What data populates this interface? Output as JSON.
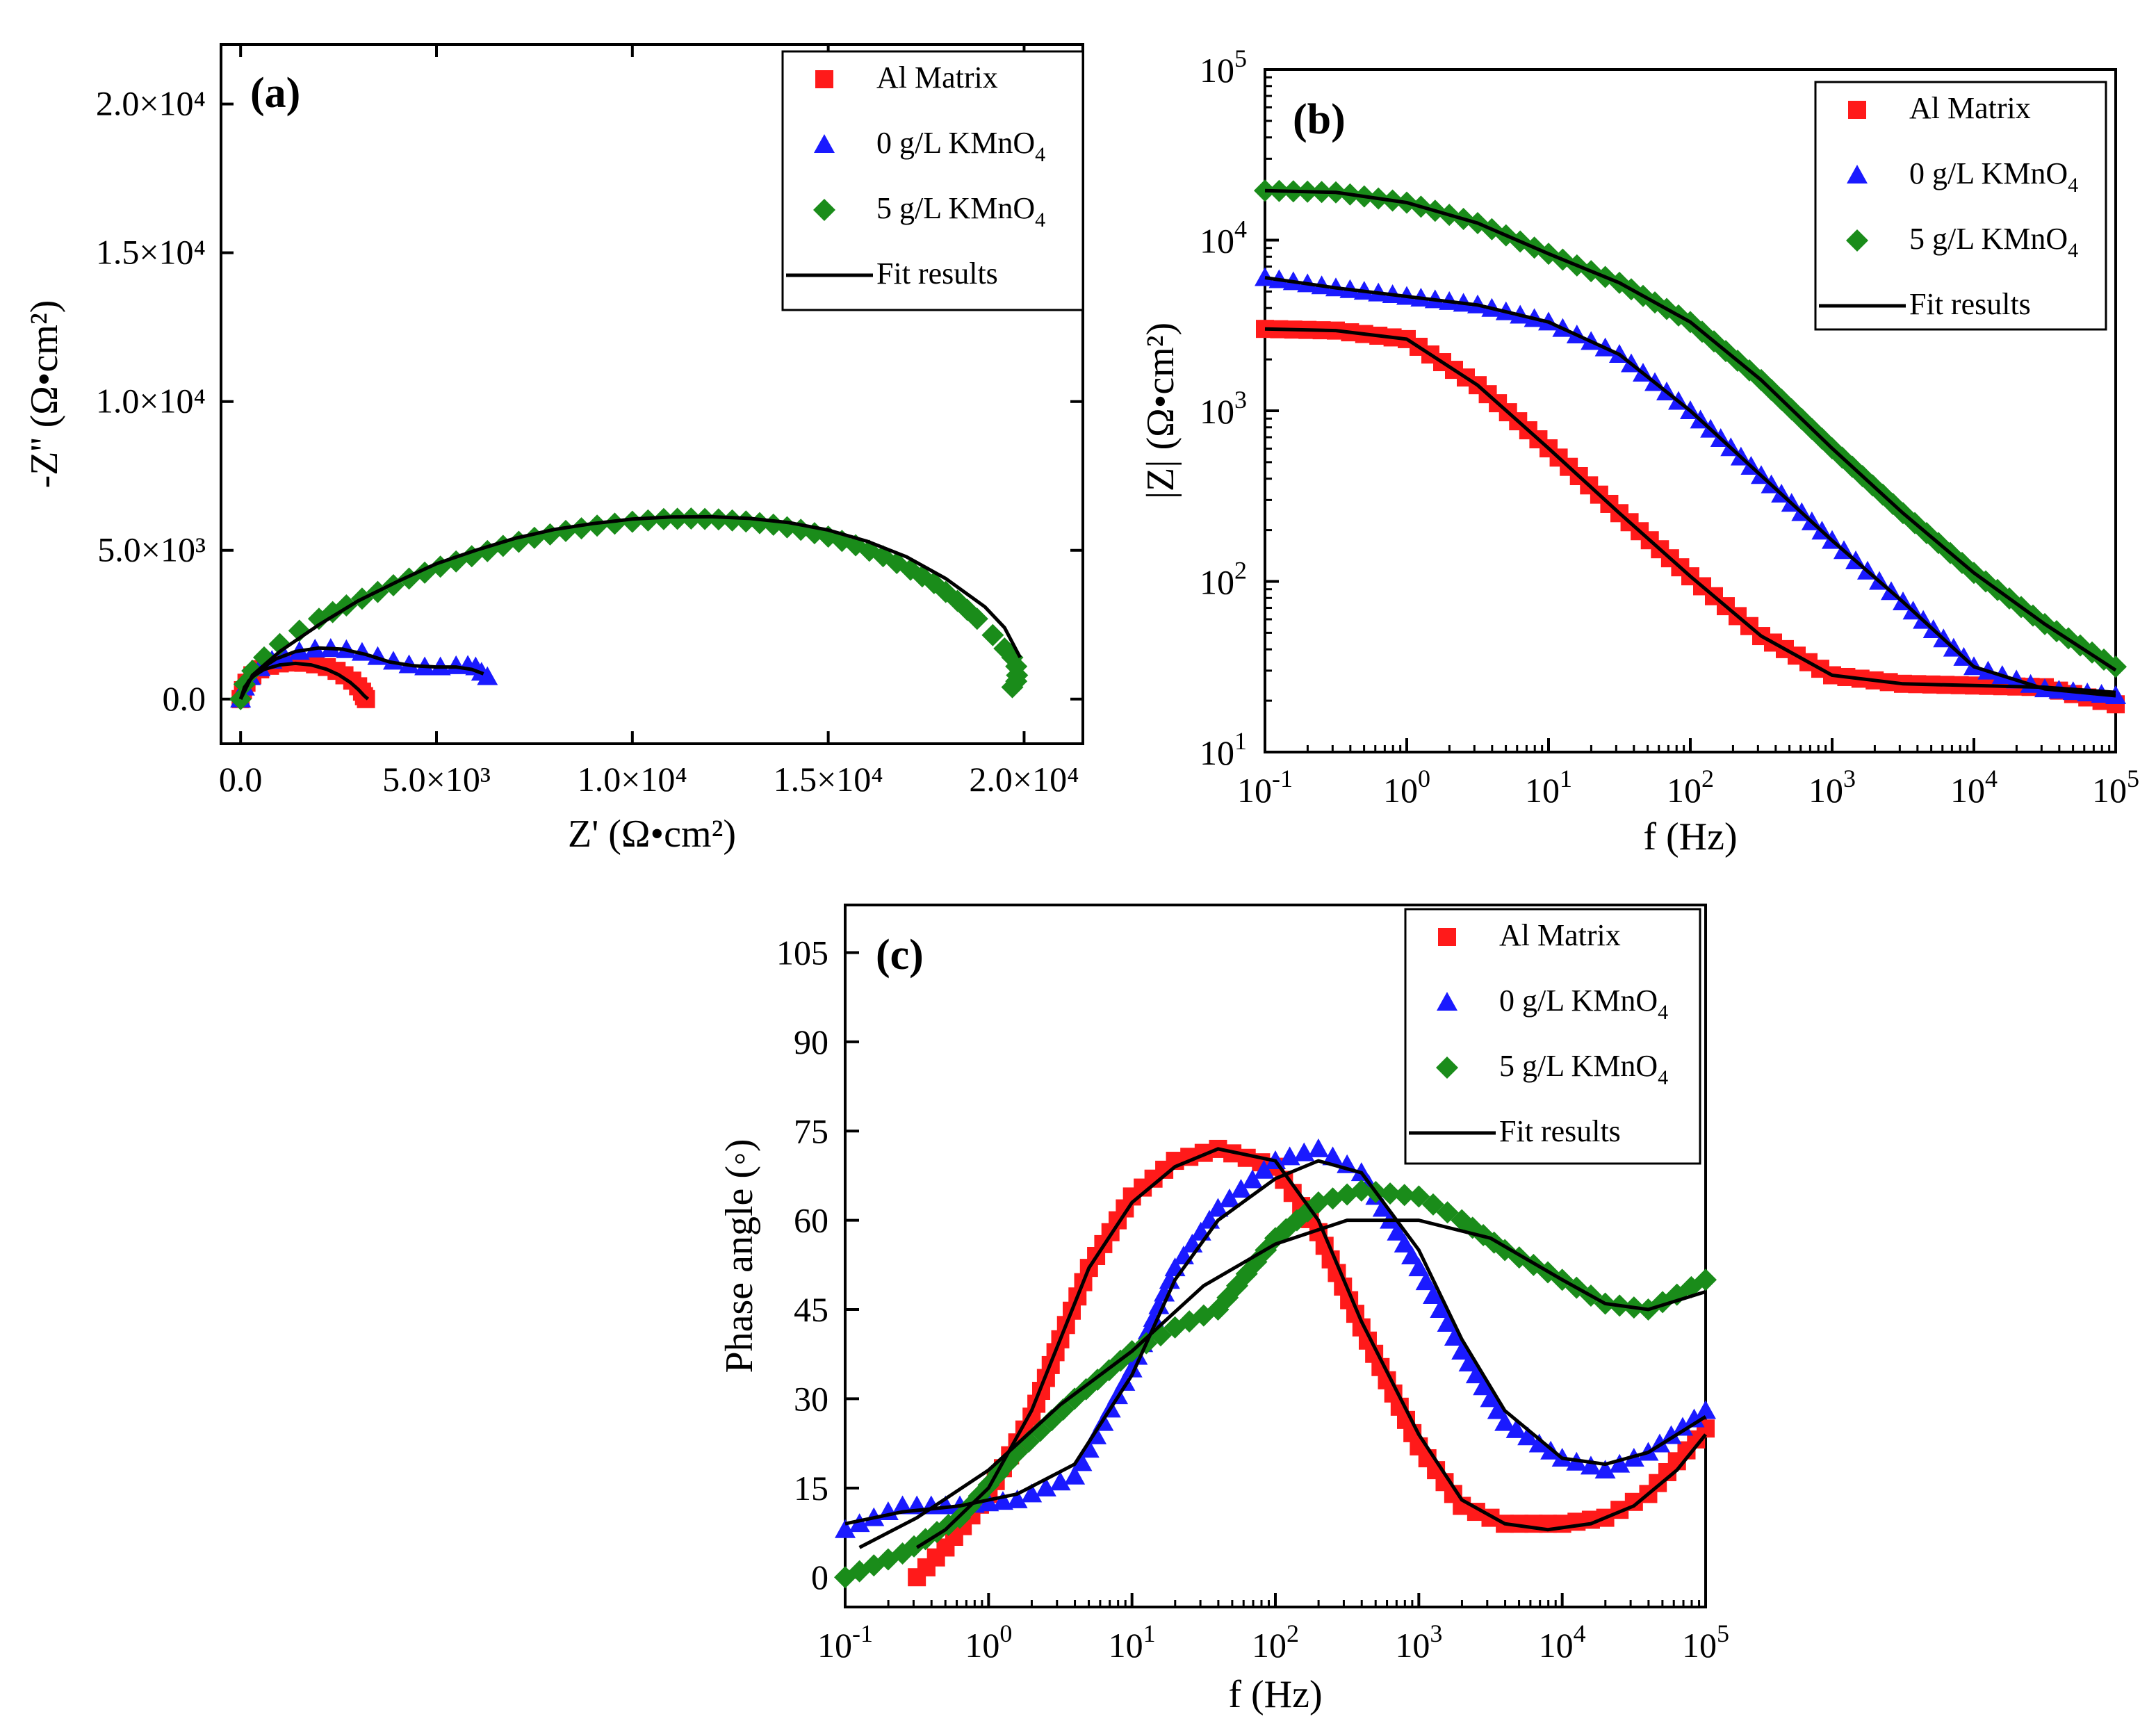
{
  "series_styles": {
    "al_matrix": {
      "color": "#ff1a1a",
      "marker": "square"
    },
    "kmno4_0": {
      "color": "#1a1aff",
      "marker": "triangle"
    },
    "kmno4_5": {
      "color": "#1a8c1a",
      "marker": "diamond"
    },
    "fit": {
      "color": "#000000"
    }
  },
  "legend": {
    "al_matrix": "Al Matrix",
    "kmno4_0": "0 g/L KMnO",
    "kmno4_5": "5 g/L KMnO",
    "subscript": "4",
    "fit": "Fit results"
  },
  "chart_data": [
    {
      "id": "a",
      "type": "scatter",
      "panel_label": "(a)",
      "xlabel": "Z' (Ω•cm²)",
      "ylabel": "-Z'' (Ω•cm²)",
      "xlim": [
        -500,
        21500
      ],
      "ylim": [
        -1500,
        22000
      ],
      "xticks": [
        {
          "v": 0,
          "label": "0.0"
        },
        {
          "v": 5000,
          "label": "5.0×10³"
        },
        {
          "v": 10000,
          "label": "1.0×10⁴"
        },
        {
          "v": 15000,
          "label": "1.5×10⁴"
        },
        {
          "v": 20000,
          "label": "2.0×10⁴"
        }
      ],
      "yticks": [
        {
          "v": 0,
          "label": "0.0"
        },
        {
          "v": 5000,
          "label": "5.0×10³"
        },
        {
          "v": 10000,
          "label": "1.0×10⁴"
        },
        {
          "v": 15000,
          "label": "1.5×10⁴"
        },
        {
          "v": 20000,
          "label": "2.0×10⁴"
        }
      ],
      "series": [
        {
          "key": "al_matrix",
          "name": "Al Matrix",
          "x": [
            0,
            60,
            150,
            300,
            500,
            750,
            1000,
            1300,
            1600,
            1900,
            2200,
            2450,
            2650,
            2850,
            3000,
            3100,
            3150,
            3200
          ],
          "y": [
            0,
            300,
            550,
            800,
            1000,
            1120,
            1200,
            1230,
            1220,
            1170,
            1080,
            950,
            800,
            620,
            430,
            250,
            100,
            0
          ]
        },
        {
          "key": "kmno4_0",
          "name": "0 g/L KMnO4",
          "x": [
            0,
            100,
            250,
            500,
            800,
            1100,
            1500,
            1900,
            2300,
            2700,
            3100,
            3500,
            3900,
            4300,
            4700,
            5100,
            5500,
            5800,
            6000,
            6150,
            6300
          ],
          "y": [
            0,
            400,
            750,
            1050,
            1300,
            1470,
            1600,
            1680,
            1700,
            1660,
            1570,
            1430,
            1270,
            1150,
            1080,
            1080,
            1120,
            1130,
            1080,
            900,
            750
          ]
        },
        {
          "key": "kmno4_5",
          "name": "5 g/L KMnO4",
          "x": [
            0,
            100,
            300,
            600,
            1000,
            1500,
            2000,
            2700,
            3500,
            4300,
            5100,
            5900,
            6700,
            7500,
            8300,
            9100,
            10000,
            10800,
            11500,
            12200,
            12900,
            13600,
            14300,
            15000,
            15700,
            16400,
            17100,
            17700,
            18300,
            18800,
            19200,
            19500,
            19700,
            19800,
            19820,
            19800,
            19700
          ],
          "y": [
            0,
            500,
            950,
            1400,
            1850,
            2300,
            2700,
            3150,
            3600,
            4050,
            4450,
            4800,
            5150,
            5420,
            5650,
            5830,
            5960,
            6050,
            6070,
            6040,
            5970,
            5860,
            5690,
            5460,
            5170,
            4800,
            4350,
            3900,
            3300,
            2700,
            2150,
            1700,
            1400,
            1100,
            800,
            600,
            400
          ]
        }
      ],
      "fits": [
        {
          "key": "al_matrix",
          "x": [
            0,
            100,
            300,
            600,
            1000,
            1400,
            1800,
            2200,
            2500,
            2800,
            3000,
            3150,
            3250
          ],
          "y": [
            0,
            400,
            750,
            1000,
            1150,
            1200,
            1150,
            1000,
            820,
            560,
            330,
            120,
            0
          ]
        },
        {
          "key": "kmno4_0",
          "x": [
            0,
            200,
            500,
            900,
            1400,
            2000,
            2600,
            3200,
            3800,
            4400,
            5000,
            5500,
            5900,
            6200
          ],
          "y": [
            0,
            600,
            1000,
            1350,
            1600,
            1720,
            1680,
            1500,
            1250,
            1120,
            1080,
            1080,
            1000,
            850
          ]
        },
        {
          "key": "kmno4_5",
          "x": [
            0,
            300,
            1000,
            2000,
            3000,
            4000,
            5000,
            6000,
            7000,
            8000,
            9000,
            10000,
            11000,
            12000,
            13000,
            14000,
            15000,
            16000,
            17000,
            18000,
            19000,
            19500,
            19900
          ],
          "y": [
            0,
            800,
            1600,
            2500,
            3300,
            3950,
            4550,
            5000,
            5400,
            5700,
            5900,
            6050,
            6120,
            6130,
            6070,
            5930,
            5680,
            5300,
            4780,
            4050,
            3100,
            2400,
            1400
          ]
        }
      ]
    },
    {
      "id": "b",
      "type": "scatter",
      "panel_label": "(b)",
      "xlabel": "f (Hz)",
      "ylabel": "|Z| (Ω•cm²)",
      "xscale": "log",
      "yscale": "log",
      "xlim_exp": [
        -1,
        5
      ],
      "ylim_exp": [
        1,
        5
      ],
      "xticks_exp": [
        -1,
        0,
        1,
        2,
        3,
        4,
        5
      ],
      "yticks_exp": [
        1,
        2,
        3,
        4,
        5
      ],
      "series": [
        {
          "key": "al_matrix",
          "name": "Al Matrix",
          "logf": [
            -1,
            -0.5,
            0,
            0.5,
            1,
            1.5,
            2,
            2.5,
            3,
            3.5,
            4,
            4.5,
            5
          ],
          "logz": [
            3.48,
            3.47,
            3.42,
            3.15,
            2.78,
            2.4,
            2.03,
            1.68,
            1.45,
            1.4,
            1.39,
            1.38,
            1.28
          ]
        },
        {
          "key": "kmno4_0",
          "name": "0 g/L KMnO4",
          "logf": [
            -1,
            -0.5,
            0,
            0.5,
            1,
            1.5,
            2,
            2.5,
            3,
            3.5,
            4,
            4.5,
            5
          ],
          "logz": [
            3.78,
            3.72,
            3.67,
            3.62,
            3.52,
            3.33,
            3.0,
            2.62,
            2.24,
            1.88,
            1.5,
            1.37,
            1.33
          ]
        },
        {
          "key": "kmno4_5",
          "name": "5 g/L KMnO4",
          "logf": [
            -1,
            -0.5,
            0,
            0.5,
            1,
            1.5,
            2,
            2.5,
            3,
            3.5,
            4,
            4.5,
            5
          ],
          "logz": [
            4.29,
            4.28,
            4.22,
            4.1,
            3.92,
            3.75,
            3.52,
            3.18,
            2.78,
            2.4,
            2.05,
            1.75,
            1.5
          ]
        }
      ],
      "fits": [
        {
          "key": "al_matrix",
          "logf": [
            -1,
            -0.5,
            0,
            0.5,
            1,
            1.5,
            2,
            2.5,
            3,
            3.5,
            4,
            4.5,
            5
          ],
          "logz": [
            3.48,
            3.47,
            3.42,
            3.15,
            2.78,
            2.4,
            2.03,
            1.68,
            1.45,
            1.4,
            1.39,
            1.38,
            1.35
          ]
        },
        {
          "key": "kmno4_0",
          "logf": [
            -1,
            -0.5,
            0,
            0.5,
            1,
            1.5,
            2,
            2.5,
            3,
            3.5,
            4,
            4.5,
            5
          ],
          "logz": [
            3.78,
            3.72,
            3.67,
            3.62,
            3.52,
            3.33,
            3.0,
            2.62,
            2.24,
            1.88,
            1.5,
            1.37,
            1.33
          ]
        },
        {
          "key": "kmno4_5",
          "logf": [
            -1,
            -0.5,
            0,
            0.5,
            1,
            1.5,
            2,
            2.5,
            3,
            3.5,
            4,
            4.5,
            5
          ],
          "logz": [
            4.29,
            4.28,
            4.22,
            4.1,
            3.92,
            3.75,
            3.52,
            3.18,
            2.78,
            2.4,
            2.05,
            1.75,
            1.48
          ]
        }
      ]
    },
    {
      "id": "c",
      "type": "scatter",
      "panel_label": "(c)",
      "xlabel": "f (Hz)",
      "ylabel": "Phase angle (◦)",
      "xscale": "log",
      "xlim_exp": [
        -1,
        5
      ],
      "ylim": [
        -5,
        113
      ],
      "xticks_exp": [
        -1,
        0,
        1,
        2,
        3,
        4,
        5
      ],
      "yticks": [
        0,
        15,
        30,
        45,
        60,
        75,
        90,
        105
      ],
      "series": [
        {
          "key": "al_matrix",
          "name": "Al Matrix",
          "logf": [
            -0.5,
            -0.3,
            0,
            0.3,
            0.5,
            0.7,
            1,
            1.3,
            1.6,
            2,
            2.3,
            2.6,
            3,
            3.3,
            3.6,
            4,
            4.3,
            4.6,
            5
          ],
          "phase": [
            0,
            5,
            14,
            27,
            40,
            52,
            64,
            70,
            72,
            69,
            58,
            42,
            22,
            12,
            9,
            9,
            10,
            14,
            25
          ]
        },
        {
          "key": "kmno4_0",
          "name": "0 g/L KMnO4",
          "logf": [
            -1,
            -0.6,
            -0.2,
            0.2,
            0.6,
            1,
            1.3,
            1.6,
            2,
            2.3,
            2.6,
            3,
            3.3,
            3.6,
            4,
            4.3,
            4.6,
            5
          ],
          "phase": [
            8,
            12,
            12,
            13,
            17,
            35,
            52,
            62,
            70,
            72,
            68,
            52,
            38,
            26,
            20,
            18,
            21,
            28
          ]
        },
        {
          "key": "kmno4_5",
          "name": "5 g/L KMnO4",
          "logf": [
            -1,
            -0.6,
            -0.2,
            0.2,
            0.6,
            1,
            1.3,
            1.6,
            2,
            2.3,
            2.6,
            3,
            3.3,
            3.6,
            4,
            4.3,
            4.6,
            5
          ],
          "phase": [
            0,
            4,
            10,
            21,
            30,
            38,
            42,
            45,
            57,
            63,
            65,
            64,
            60,
            55,
            50,
            46,
            45,
            50
          ]
        }
      ],
      "fits": [
        {
          "key": "al_matrix",
          "logf": [
            -0.5,
            -0.3,
            0,
            0.3,
            0.5,
            0.7,
            1,
            1.3,
            1.6,
            2,
            2.3,
            2.6,
            3,
            3.3,
            3.6,
            3.9,
            4.2,
            4.5,
            4.8,
            5
          ],
          "phase": [
            5,
            8,
            15,
            28,
            40,
            52,
            63,
            69,
            72,
            70,
            60,
            43,
            24,
            13,
            9,
            8,
            9,
            12,
            18,
            24
          ]
        },
        {
          "key": "kmno4_0",
          "logf": [
            -1,
            -0.6,
            -0.2,
            0.2,
            0.6,
            1,
            1.3,
            1.6,
            2,
            2.3,
            2.6,
            3,
            3.3,
            3.6,
            4,
            4.3,
            4.6,
            5
          ],
          "phase": [
            9,
            11,
            12,
            14,
            19,
            34,
            50,
            60,
            67,
            70,
            68,
            55,
            40,
            28,
            20,
            19,
            21,
            27
          ]
        },
        {
          "key": "kmno4_5",
          "logf": [
            -0.9,
            -0.5,
            0,
            0.5,
            1,
            1.5,
            2,
            2.5,
            3,
            3.5,
            4,
            4.3,
            4.6,
            5
          ],
          "phase": [
            5,
            10,
            18,
            29,
            38,
            49,
            56,
            60,
            60,
            57,
            50,
            46,
            45,
            48
          ]
        }
      ]
    }
  ]
}
